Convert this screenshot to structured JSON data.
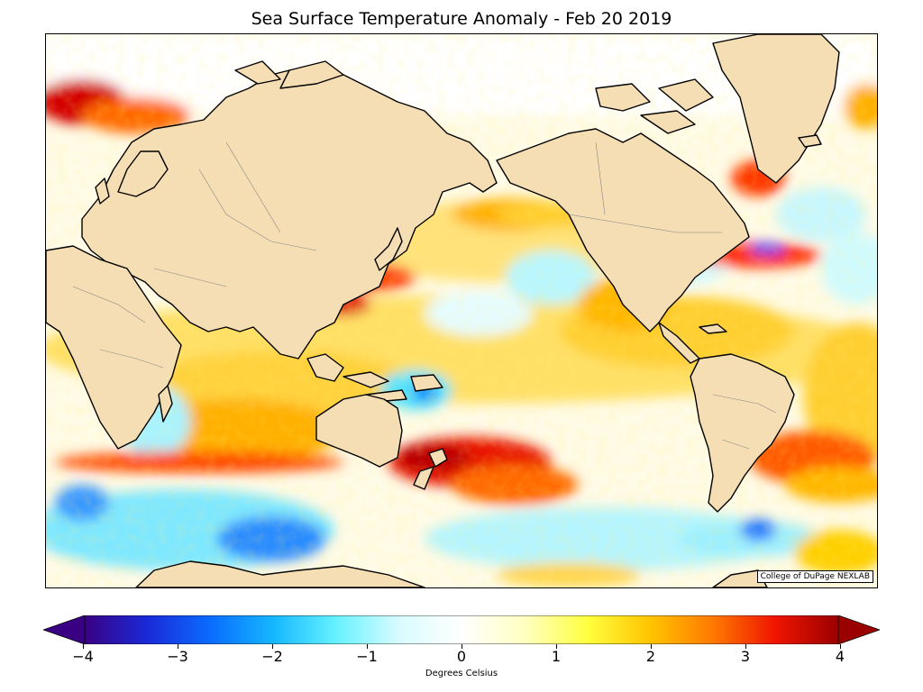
{
  "title": "Sea Surface Temperature Anomaly - Feb 20 2019",
  "credit": "College of DuPage NEXLAB",
  "colorbar": {
    "label": "Degrees Celsius",
    "ticks": [
      "−4",
      "−3",
      "−2",
      "−1",
      "0",
      "1",
      "2",
      "3",
      "4"
    ],
    "range": [
      -4,
      4
    ],
    "extend": "both",
    "colors": [
      "#3a0084",
      "#1a2ad8",
      "#0a6cff",
      "#15b6ff",
      "#66f2ff",
      "#d8fbff",
      "#ffffff",
      "#ffffc2",
      "#ffff40",
      "#ffc400",
      "#ff7a00",
      "#f01400",
      "#9a0000"
    ]
  },
  "map": {
    "land_color": "#f5deb3",
    "regions": [
      "North America",
      "South America",
      "Eurasia",
      "Africa",
      "Australia",
      "Greenland",
      "Antarctica"
    ]
  }
}
